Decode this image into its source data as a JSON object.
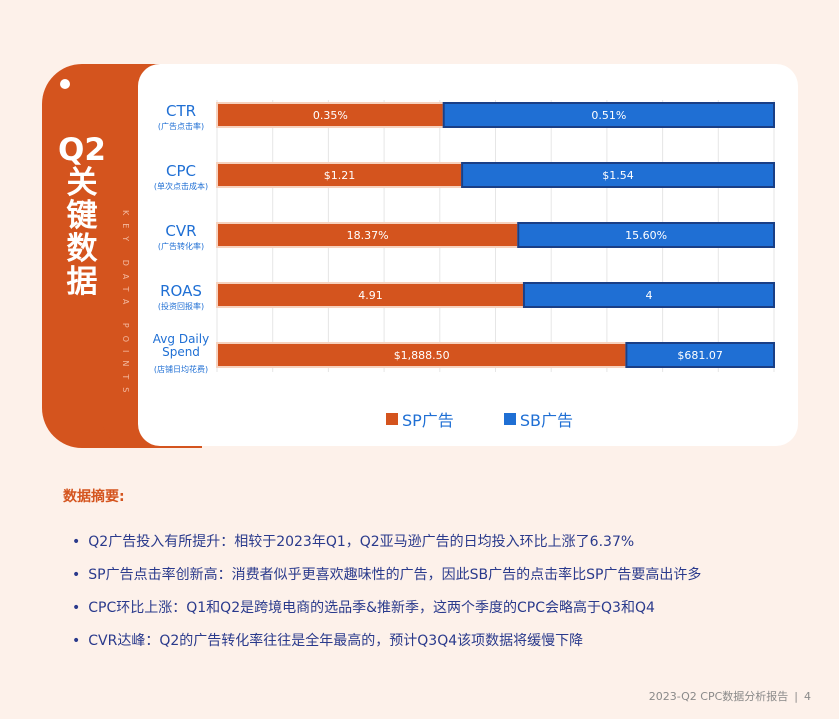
{
  "side_panel": {
    "title": "Q2\n关\n键\n数\n据",
    "subtitle": "KEY DATA POINTS"
  },
  "colors": {
    "sp": "#d4541e",
    "sb": "#1f6fd4"
  },
  "chart_data": {
    "type": "bar",
    "orientation": "horizontal",
    "stacked_percent": true,
    "categories": [
      {
        "label": "CTR",
        "sublabel": "(广告点击率)"
      },
      {
        "label": "CPC",
        "sublabel": "(单次点击成本)"
      },
      {
        "label": "CVR",
        "sublabel": "(广告转化率)"
      },
      {
        "label": "ROAS",
        "sublabel": "(投资回报率)"
      },
      {
        "label": "Avg Daily\nSpend",
        "sublabel": "(店铺日均花费)"
      }
    ],
    "series": [
      {
        "name": "SP广告",
        "values": [
          0.35,
          1.21,
          18.37,
          4.91,
          1888.5
        ],
        "labels": [
          "0.35%",
          "$1.21",
          "18.37%",
          "4.91",
          "$1,888.50"
        ]
      },
      {
        "name": "SB广告",
        "values": [
          0.51,
          1.54,
          15.6,
          4,
          681.07
        ],
        "labels": [
          "0.51%",
          "$1.54",
          "15.60%",
          "4",
          "$681.07"
        ]
      }
    ],
    "legend_position": "bottom",
    "grid": true
  },
  "summary": {
    "title": "数据摘要:",
    "items": [
      "Q2广告投入有所提升：相较于2023年Q1，Q2亚马逊广告的日均投入环比上涨了6.37%",
      "SP广告点击率创新高：消费者似乎更喜欢趣味性的广告，因此SB广告的点击率比SP广告要高出许多",
      "CPC环比上涨：Q1和Q2是跨境电商的选品季&推新季，这两个季度的CPC会略高于Q3和Q4",
      "CVR达峰：Q2的广告转化率往往是全年最高的，预计Q3Q4该项数据将缓慢下降"
    ]
  },
  "footer": {
    "report": "2023-Q2 CPC数据分析报告",
    "page": "4"
  }
}
